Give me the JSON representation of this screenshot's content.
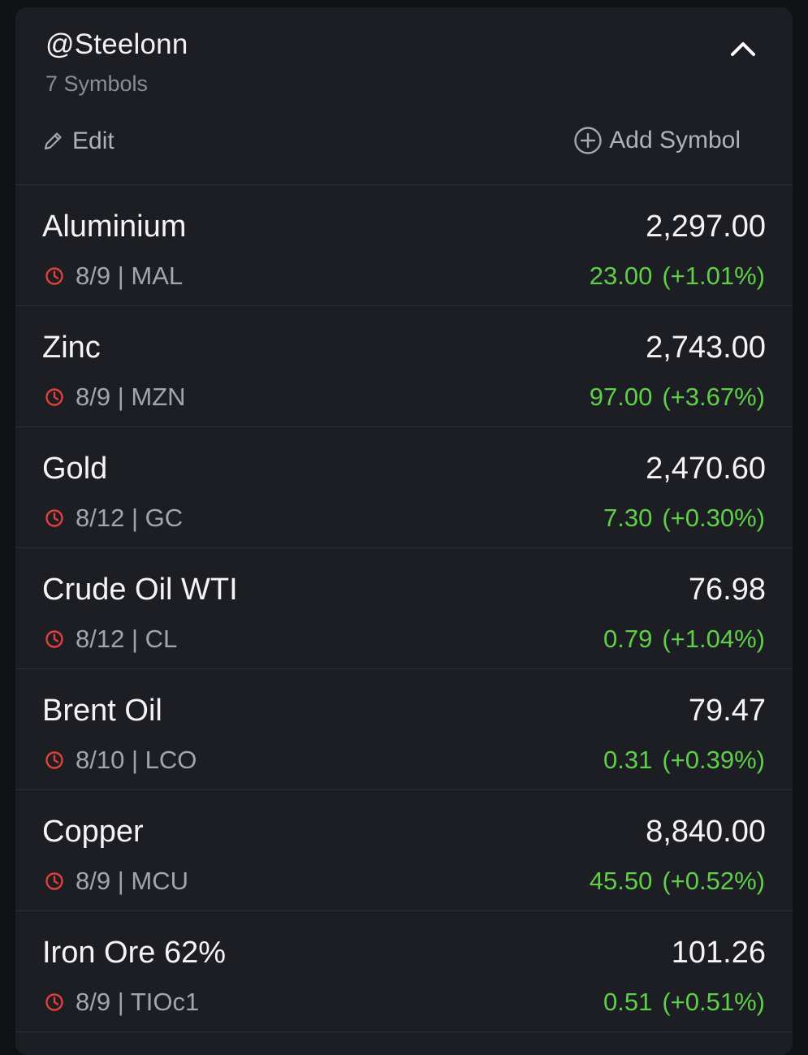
{
  "watchlist": {
    "title": "@Steelonn",
    "count": "7 Symbols",
    "edit_label": "Edit",
    "add_label": "Add Symbol"
  },
  "colors": {
    "background": "#1c1e24",
    "positive": "#5fcf48",
    "clock": "#e0403a",
    "text_primary": "#f4f4f4",
    "text_secondary": "#a3a5ab"
  },
  "icons": {
    "collapse": "chevron-up-icon",
    "edit": "pencil-icon",
    "add": "plus-circle-icon",
    "session": "clock-icon"
  },
  "symbols": [
    {
      "name": "Aluminium",
      "price": "2,297.00",
      "meta": "8/9 | MAL",
      "change": "23.00",
      "change_pct": "(+1.01%)"
    },
    {
      "name": "Zinc",
      "price": "2,743.00",
      "meta": "8/9 | MZN",
      "change": "97.00",
      "change_pct": "(+3.67%)"
    },
    {
      "name": "Gold",
      "price": "2,470.60",
      "meta": "8/12 | GC",
      "change": "7.30",
      "change_pct": "(+0.30%)"
    },
    {
      "name": "Crude Oil WTI",
      "price": "76.98",
      "meta": "8/12 | CL",
      "change": "0.79",
      "change_pct": "(+1.04%)"
    },
    {
      "name": "Brent Oil",
      "price": "79.47",
      "meta": "8/10 | LCO",
      "change": "0.31",
      "change_pct": "(+0.39%)"
    },
    {
      "name": "Copper",
      "price": "8,840.00",
      "meta": "8/9 | MCU",
      "change": "45.50",
      "change_pct": "(+0.52%)"
    },
    {
      "name": "Iron Ore 62%",
      "price": "101.26",
      "meta": "8/9 | TIOc1",
      "change": "0.51",
      "change_pct": "(+0.51%)"
    }
  ]
}
